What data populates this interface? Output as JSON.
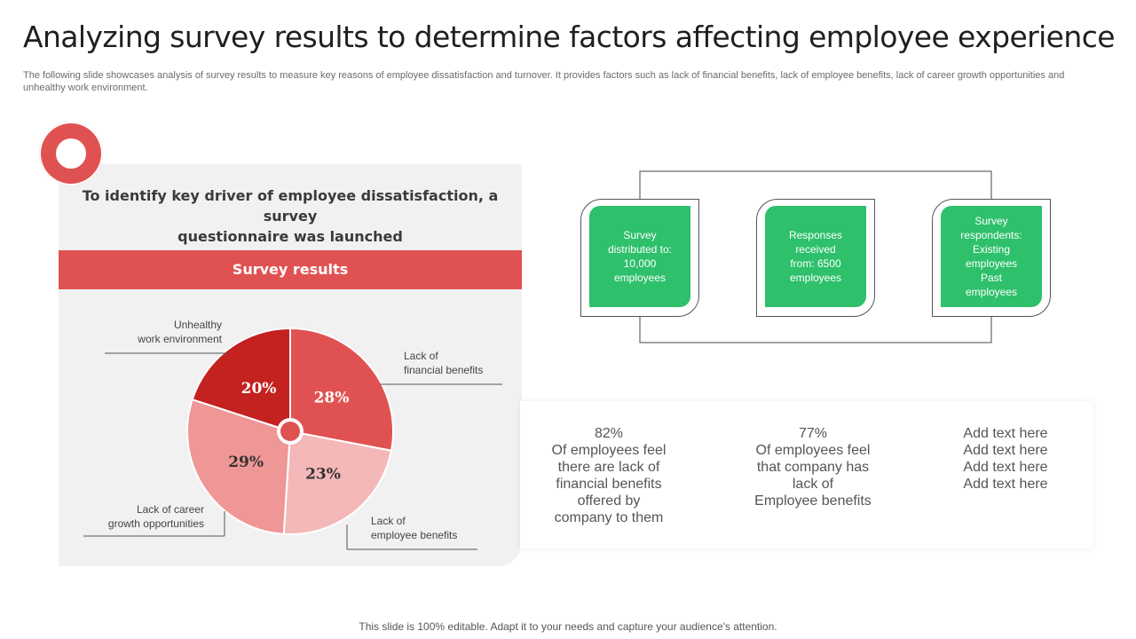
{
  "slide": {
    "title": "Analyzing survey results to determine factors affecting employee experience",
    "subtitle": "The following slide showcases analysis of survey results to measure key reasons of employee dissatisfaction and turnover. It provides factors such as lack of financial benefits, lack of employee benefits, lack of career growth opportunities and unhealthy work environment.",
    "footer": "This slide is 100% editable. Adapt it to your needs and capture your audience's attention."
  },
  "panel": {
    "heading_line1": "To identify key driver of employee dissatisfaction, a survey",
    "heading_line2": "questionnaire was launched",
    "results_label": "Survey results"
  },
  "chart_data": {
    "type": "pie",
    "title": "Survey results",
    "unit": "%",
    "slices": [
      {
        "label_lines": [
          "Lack of",
          "financial benefits"
        ],
        "value": 28,
        "color": "#e05252"
      },
      {
        "label_lines": [
          "Lack of",
          "employee benefits"
        ],
        "value": 23,
        "color": "#f4b8b8"
      },
      {
        "label_lines": [
          "Lack of career",
          "growth opportunities"
        ],
        "value": 29,
        "color": "#ef9696"
      },
      {
        "label_lines": [
          "Unhealthy",
          "work environment"
        ],
        "value": 20,
        "color": "#c42121"
      }
    ],
    "start_angle_deg": 0,
    "center_marker": true
  },
  "flow": {
    "boxes": [
      {
        "lines": [
          "Survey",
          "distributed to:",
          "10,000",
          "employees"
        ]
      },
      {
        "lines": [
          "Responses",
          "received",
          "from: 6500",
          "employees"
        ]
      },
      {
        "lines": [
          "Survey",
          "respondents:",
          "Existing",
          "employees",
          "Past",
          "employees"
        ]
      }
    ],
    "accent_color": "#2ec06b"
  },
  "stats": [
    {
      "lines": [
        "82%",
        "Of employees feel",
        "there are lack of",
        "financial benefits",
        "offered by",
        "company to them"
      ]
    },
    {
      "lines": [
        "77%",
        "Of employees feel",
        "that company has",
        "lack of",
        "Employee benefits"
      ]
    },
    {
      "lines": [
        "Add text here",
        "Add text here",
        "Add text here",
        "Add text here"
      ]
    }
  ]
}
